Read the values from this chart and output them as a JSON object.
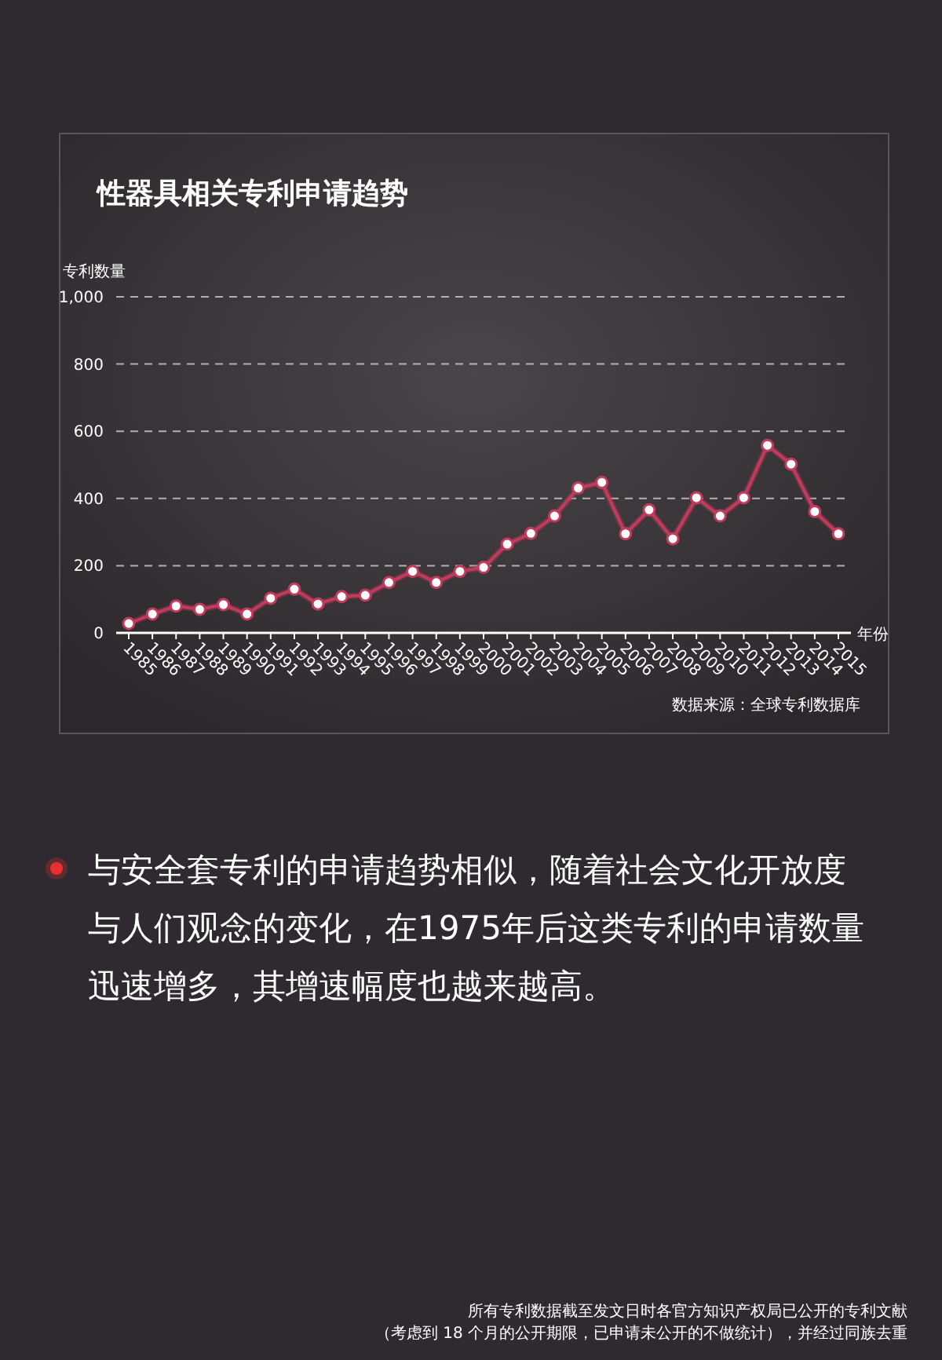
{
  "chart_data": {
    "type": "line",
    "title": "性器具相关专利申请趋势",
    "ylabel": "专利数量",
    "xlabel": "年份",
    "categories": [
      "1985",
      "1986",
      "1987",
      "1988",
      "1989",
      "1990",
      "1991",
      "1992",
      "1993",
      "1994",
      "1995",
      "1996",
      "1997",
      "1998",
      "1999",
      "2000",
      "2001",
      "2002",
      "2003",
      "2004",
      "2005",
      "2006",
      "2007",
      "2008",
      "2009",
      "2010",
      "2011",
      "2012",
      "2013",
      "2014",
      "2015"
    ],
    "series": [
      {
        "color": "#c23a5c",
        "values": [
          28,
          56,
          80,
          70,
          84,
          56,
          103,
          130,
          86,
          108,
          112,
          150,
          183,
          150,
          183,
          195,
          264,
          296,
          348,
          431,
          448,
          295,
          366,
          280,
          402,
          348,
          402,
          558,
          502,
          361,
          295
        ]
      }
    ],
    "ylim": [
      0,
      1000
    ],
    "yticks": [
      0,
      200,
      400,
      600,
      800,
      {
        "value": 1000,
        "label": "1,000"
      }
    ],
    "grid": "y",
    "marker": "circle",
    "line_style": "solid",
    "annotations": [
      "数据来源：全球专利数据库",
      "与安全套专利的申请趋势相似，随着社会文化开放度与人们观念的变化，在1975年后这类专利的申请数量迅速增多，其增速幅度也越来越高。",
      "所有专利数据截至发文日时各官方知识产权局已公开的专利文献",
      "（考虑到 18 个月的公开期限，已申请未公开的不做统计），并经过同族去重"
    ]
  }
}
